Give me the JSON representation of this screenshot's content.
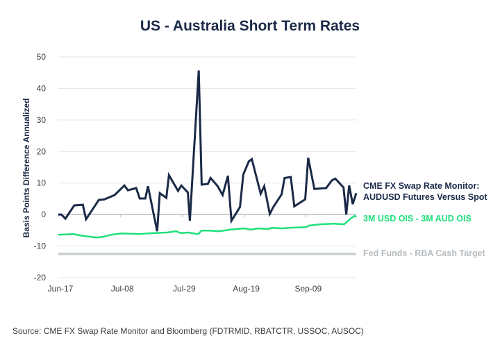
{
  "chart_data": {
    "type": "line",
    "title": "US - Australia Short Term Rates",
    "xlabel": "",
    "ylabel": "Basis Points Difference Annualized",
    "ylim": [
      -20,
      50
    ],
    "yticks": [
      50,
      40,
      30,
      20,
      10,
      0,
      -10,
      -20
    ],
    "x_tick_labels": [
      "Jun-17",
      "Jul-08",
      "Jul-29",
      "Aug-19",
      "Sep-09"
    ],
    "x_tick_days": [
      0,
      21,
      42,
      63,
      84
    ],
    "x_range_days": [
      0,
      101
    ],
    "grid": true,
    "legend_placement": "right, inline at line ends",
    "source": "Source: CME FX Swap Rate Monitor and Bloomberg (FDTRMID, RBATCTR, USSOC, AUSOC)",
    "series": [
      {
        "name": "CME FX Swap Rate Monitor: AUDUSD Futures Versus Spot",
        "legend_lines": [
          "CME FX Swap Rate Monitor:",
          "AUDUSD Futures Versus Spot"
        ],
        "color": "#1b2a47",
        "x_days": [
          0,
          1,
          2.4,
          5.4,
          8.3,
          9.4,
          13.7,
          15.6,
          19.1,
          22.4,
          23.6,
          26.4,
          27.6,
          29.5,
          30.4,
          33.5,
          34.4,
          36.6,
          37.5,
          40.6,
          41.7,
          43.9,
          44.6,
          47.6,
          48.6,
          50.7,
          51.6,
          54,
          55.7,
          57.5,
          58.7,
          61.6,
          62.7,
          64.6,
          65.6,
          68.6,
          69.8,
          71.7,
          72.9,
          75.7,
          76.7,
          78.8,
          80,
          83.7,
          84.7,
          86.8,
          90.8,
          92.7,
          93.9,
          96.7,
          97.6,
          98.6,
          99.8,
          101
        ],
        "values": [
          0,
          0,
          -1.3,
          2.9,
          3.1,
          -1.5,
          4.6,
          4.8,
          6.2,
          9.2,
          7.7,
          8.4,
          5.1,
          5.1,
          9.0,
          -5.3,
          6.8,
          5.3,
          12.5,
          7.5,
          9.2,
          7.0,
          -2.0,
          45.7,
          9.5,
          9.7,
          11.6,
          9.0,
          6.2,
          12.3,
          -2.0,
          2.4,
          12.7,
          16.9,
          17.6,
          6.6,
          9.0,
          0.2,
          2.4,
          6.4,
          11.6,
          11.9,
          2.6,
          4.8,
          18.0,
          8.1,
          8.4,
          10.8,
          11.4,
          8.6,
          0,
          9.2,
          3.3,
          6.8
        ]
      },
      {
        "name": "3M USD OIS - 3M AUD OIS",
        "legend_lines": [
          "3M USD OIS - 3M AUD OIS"
        ],
        "color": "#1fe07a",
        "x_days": [
          0,
          5,
          8.5,
          13.2,
          15.6,
          17.9,
          21.5,
          27.4,
          32.1,
          36.8,
          39.9,
          41.5,
          43.9,
          47.4,
          48.6,
          51,
          54.5,
          58.3,
          62.9,
          65.3,
          67.7,
          71.2,
          72.4,
          75.7,
          78.1,
          84,
          85,
          88.7,
          93.4,
          96.9,
          99.3,
          100.5,
          101
        ],
        "values": [
          -6.4,
          -6.2,
          -6.8,
          -7.3,
          -7.0,
          -6.4,
          -6.0,
          -6.2,
          -5.9,
          -5.7,
          -5.3,
          -5.9,
          -5.7,
          -6.2,
          -5.1,
          -5.1,
          -5.3,
          -4.8,
          -4.4,
          -4.8,
          -4.4,
          -4.6,
          -4.2,
          -4.4,
          -4.2,
          -4.0,
          -3.5,
          -3.1,
          -2.9,
          -3.1,
          -1.1,
          -0.4,
          -0.8
        ]
      },
      {
        "name": "Fed Funds - RBA Cash Target",
        "legend_lines": [
          "Fed Funds - RBA Cash Target"
        ],
        "color": "#c8cdd1",
        "x_days": [
          0,
          101
        ],
        "values": [
          -12.5,
          -12.5
        ]
      }
    ]
  }
}
